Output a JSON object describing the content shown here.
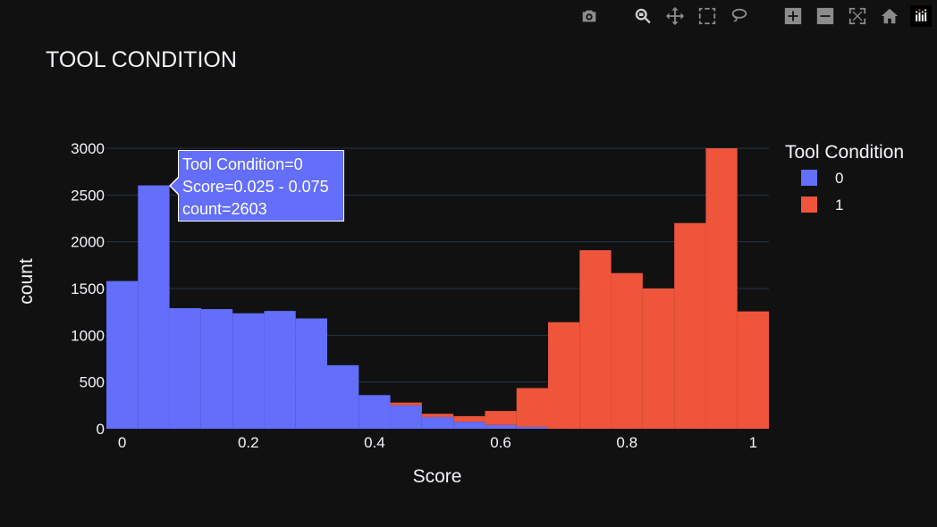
{
  "chart_data": {
    "type": "bar",
    "title": "TOOL CONDITION",
    "xlabel": "Score",
    "ylabel": "count",
    "xlim": [
      -0.025,
      1.025
    ],
    "ylim": [
      0,
      3000
    ],
    "xticks": [
      0,
      0.2,
      0.4,
      0.6,
      0.8,
      1
    ],
    "xtick_labels": [
      "0",
      "0.2",
      "0.4",
      "0.6",
      "0.8",
      "1"
    ],
    "yticks": [
      0,
      500,
      1000,
      1500,
      2000,
      2500,
      3000
    ],
    "ytick_labels": [
      "0",
      "500",
      "1000",
      "1500",
      "2000",
      "2500",
      "3000"
    ],
    "grid": true,
    "barmode": "stack",
    "bin_width": 0.05,
    "bin_starts": [
      -0.025,
      0.025,
      0.075,
      0.125,
      0.175,
      0.225,
      0.275,
      0.325,
      0.375,
      0.425,
      0.475,
      0.525,
      0.575,
      0.625,
      0.675,
      0.725,
      0.775,
      0.825,
      0.875,
      0.925,
      0.975
    ],
    "legend": {
      "title": "Tool Condition",
      "placement": "right"
    },
    "series": [
      {
        "name": "0",
        "color": "#636efa",
        "values": [
          1580,
          2603,
          1290,
          1280,
          1235,
          1260,
          1180,
          680,
          360,
          250,
          125,
          75,
          40,
          20,
          0,
          0,
          0,
          0,
          0,
          0,
          0
        ]
      },
      {
        "name": "1",
        "color": "#ef553b",
        "values": [
          0,
          0,
          0,
          0,
          0,
          0,
          0,
          0,
          0,
          30,
          35,
          60,
          150,
          415,
          1140,
          1910,
          1665,
          1500,
          2200,
          3000,
          1255
        ]
      }
    ],
    "hover": {
      "line1": "Tool Condition=0",
      "line2": "Score=0.025 - 0.075",
      "line3": "count=2603"
    }
  },
  "modebar": {
    "buttons": [
      {
        "name": "camera-icon"
      },
      {
        "name": "zoom-icon"
      },
      {
        "name": "pan-icon"
      },
      {
        "name": "box-select-icon"
      },
      {
        "name": "lasso-select-icon"
      },
      {
        "name": "zoom-in-icon"
      },
      {
        "name": "zoom-out-icon"
      },
      {
        "name": "autoscale-icon"
      },
      {
        "name": "reset-axes-icon"
      },
      {
        "name": "plotly-logo-icon"
      }
    ]
  },
  "colors": {
    "background": "#111111",
    "grid": "#283442",
    "text": "#f2f5fa"
  }
}
